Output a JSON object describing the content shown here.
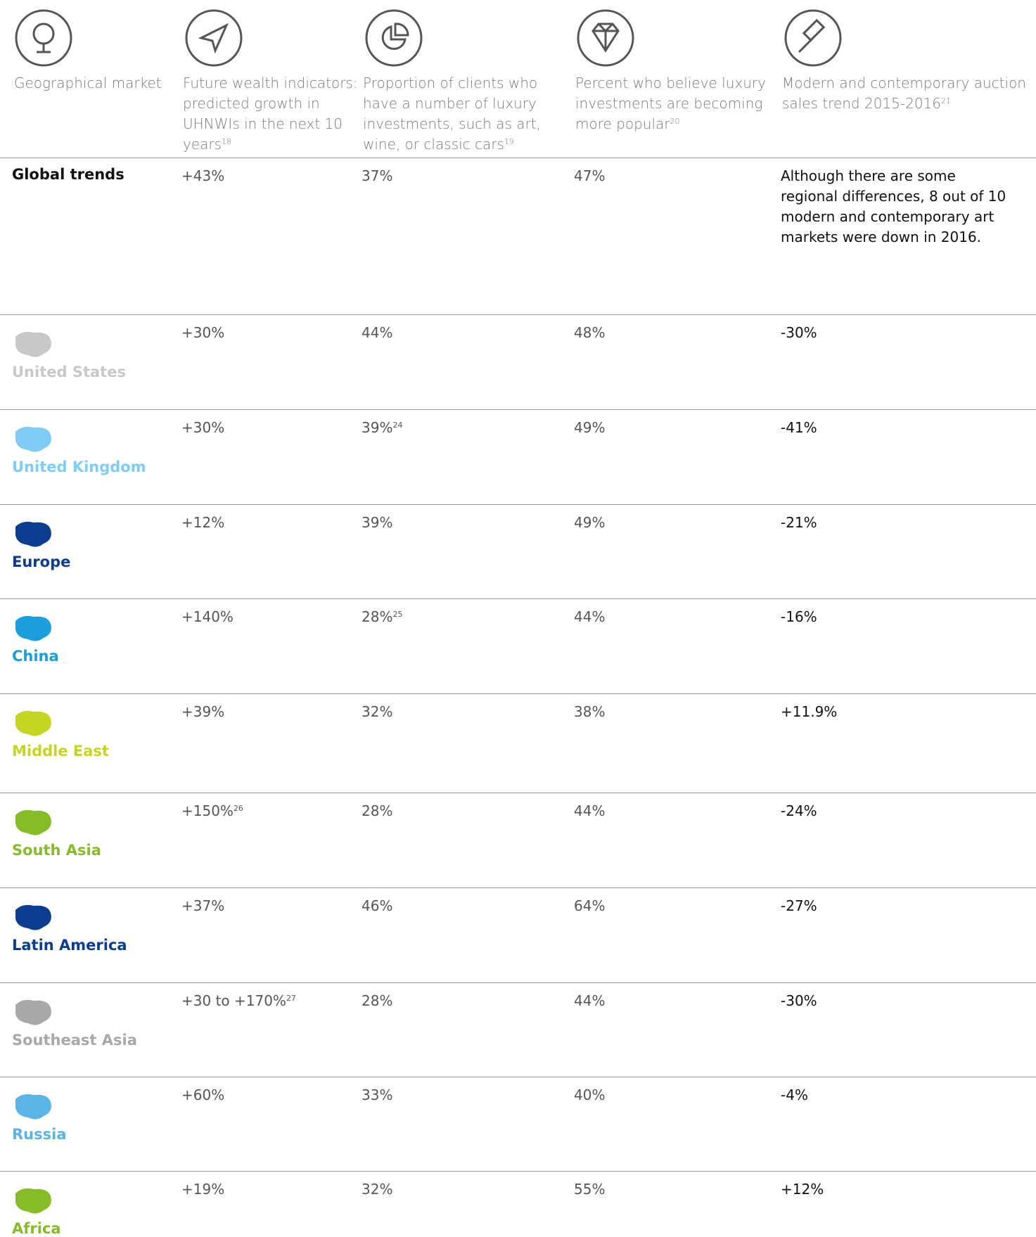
{
  "header_columns": [
    {
      "text": "Geographical market"
    },
    {
      "text": "Future wealth indicators: predicted growth in UHNWIs in the next 10 years",
      "note": "18"
    },
    {
      "text": "Proportion of clients who have a number of luxury investments, such as art, wine, or classic cars",
      "note": "19"
    },
    {
      "text": "Percent who believe luxury investments are becoming more popular",
      "note": "20"
    },
    {
      "text": "Modern and contemporary auction sales trend 2015-2016",
      "note": "21"
    }
  ],
  "rows": [
    {
      "region": "Global trends",
      "cells": [
        {
          "text": "+43%"
        },
        {
          "text": "37%"
        },
        {
          "text": "47%"
        },
        {
          "text": "Although there are some regional differences, 8 out of 10 modern and contemporary art markets were down in 2016."
        }
      ]
    },
    {
      "region": "United States",
      "color": "#c8c8c8",
      "cells": [
        {
          "text": "+30%"
        },
        {
          "text": "44%"
        },
        {
          "text": "48%"
        },
        {
          "text": "-30%"
        }
      ]
    },
    {
      "region": "United Kingdom",
      "color": "#7fcdf5",
      "cells": [
        {
          "text": "+30%"
        },
        {
          "text": "39%",
          "note": "24"
        },
        {
          "text": "49%"
        },
        {
          "text": "-41%"
        }
      ]
    },
    {
      "region": "Europe",
      "color": "#0b3d91",
      "cells": [
        {
          "text": "+12%"
        },
        {
          "text": "39%"
        },
        {
          "text": "49%"
        },
        {
          "text": "-21%"
        }
      ]
    },
    {
      "region": "China",
      "color": "#1a9fdc",
      "cells": [
        {
          "text": "+140%"
        },
        {
          "text": "28%",
          "note": "25"
        },
        {
          "text": "44%"
        },
        {
          "text": "-16%"
        }
      ]
    },
    {
      "region": "Middle East",
      "color": "#c6d620",
      "cells": [
        {
          "text": "+39%"
        },
        {
          "text": "32%"
        },
        {
          "text": "38%"
        },
        {
          "text": "+11.9%"
        }
      ]
    },
    {
      "region": "South Asia",
      "color": "#86bc25",
      "cells": [
        {
          "text": "+150%",
          "note": "26"
        },
        {
          "text": "28%"
        },
        {
          "text": "44%"
        },
        {
          "text": "-24%"
        }
      ]
    },
    {
      "region": "Latin America",
      "color": "#0b3d91",
      "cells": [
        {
          "text": "+37%"
        },
        {
          "text": "46%"
        },
        {
          "text": "64%"
        },
        {
          "text": "-27%"
        }
      ]
    },
    {
      "region": "Southeast Asia",
      "color": "#a8a8a8",
      "cells": [
        {
          "text": "+30 to +170%",
          "note": "27"
        },
        {
          "text": "28%"
        },
        {
          "text": "44%"
        },
        {
          "text": "-30%"
        }
      ]
    },
    {
      "region": "Russia",
      "color": "#5ab4e8",
      "cells": [
        {
          "text": "+60%"
        },
        {
          "text": "33%"
        },
        {
          "text": "40%"
        },
        {
          "text": "-4%"
        }
      ]
    },
    {
      "region": "Africa",
      "color": "#86bc25",
      "cells": [
        {
          "text": "+19%"
        },
        {
          "text": "32%"
        },
        {
          "text": "55%"
        },
        {
          "text": "+12%"
        }
      ]
    }
  ]
}
